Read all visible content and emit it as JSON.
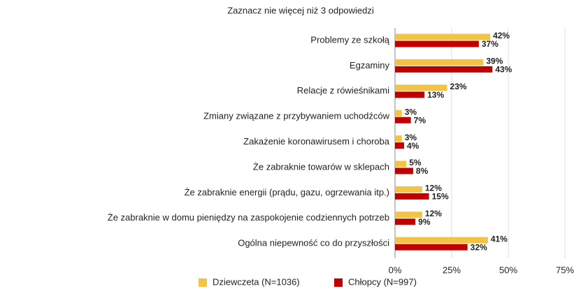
{
  "chart_data": {
    "type": "hbar",
    "title": "Zaznacz nie więcej niż 3 odpowiedzi",
    "categories": [
      "Problemy ze szkołą",
      "Egzaminy",
      "Relacje z rówieśnikami",
      "Zmiany związane z przybywaniem uchodźców",
      "Zakażenie koronawirusem i choroba",
      "Że zabraknie towarów w sklepach",
      "Że zabraknie energii (prądu, gazu, ogrzewania itp.)",
      "Że zabraknie w domu pieniędzy na zaspokojenie codziennych potrzeb",
      "Ogólna niepewność co do przyszłości"
    ],
    "series": [
      {
        "name": "Dziewczeta (N=1036)",
        "color": "#f3c344",
        "values": [
          42,
          39,
          23,
          3,
          3,
          5,
          12,
          12,
          41
        ],
        "value_labels": [
          "42%",
          "39%",
          "23%",
          "3%",
          "3%",
          "5%",
          "12%",
          "12%",
          "41%"
        ]
      },
      {
        "name": "Chłopcy (N=997)",
        "color": "#c00000",
        "values": [
          37,
          43,
          13,
          7,
          4,
          8,
          15,
          9,
          32
        ],
        "value_labels": [
          "37%",
          "43%",
          "13%",
          "7%",
          "4%",
          "8%",
          "15%",
          "9%",
          "32%"
        ]
      }
    ],
    "xlim": [
      0,
      75
    ],
    "xticks": [
      {
        "value": 0,
        "label": "0%"
      },
      {
        "value": 25,
        "label": "25%"
      },
      {
        "value": 50,
        "label": "50%"
      },
      {
        "value": 75,
        "label": "75%"
      }
    ],
    "grid": true,
    "legend": "bottom"
  }
}
